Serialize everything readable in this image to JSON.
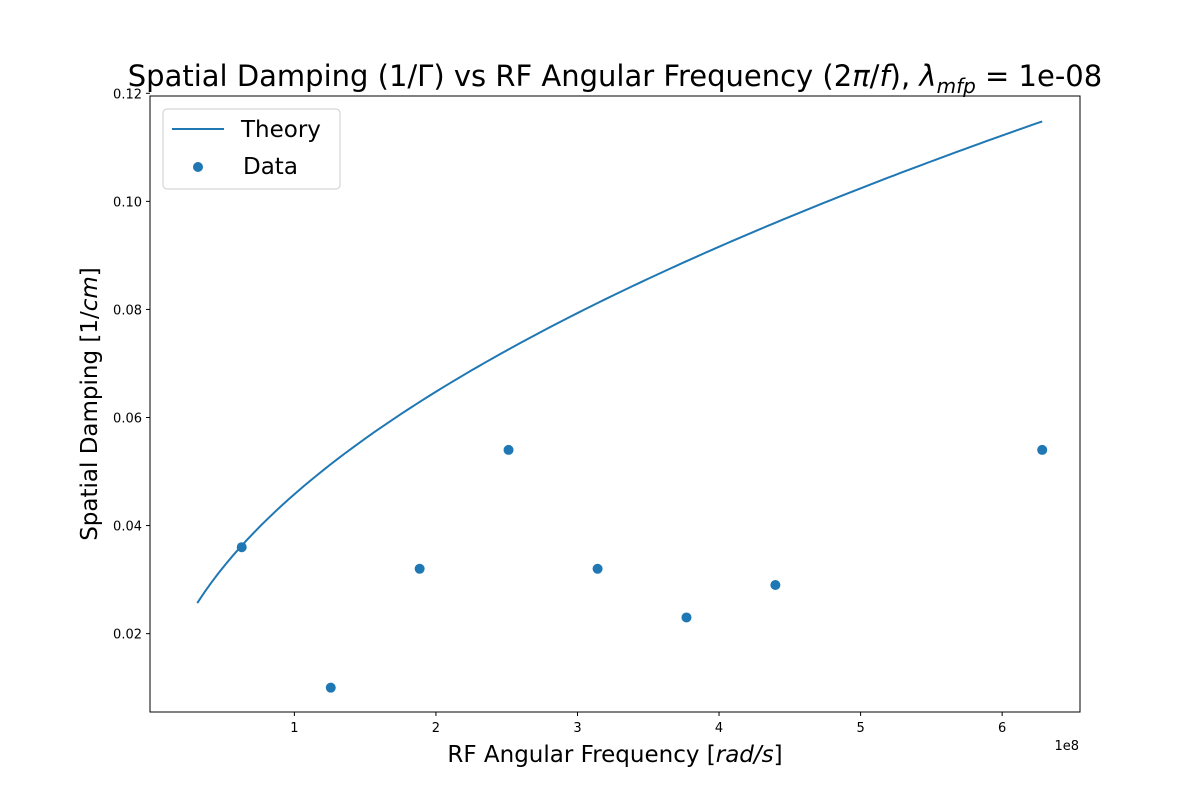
{
  "chart_data": {
    "type": "scatter",
    "title": {
      "prefix": "Spatial Damping (1/Γ) vs RF Angular Frequency (2",
      "pi": "π",
      "slash": "/",
      "f": "f",
      "suffix": "), ",
      "lambda": "λ",
      "sub": "mfp",
      "eq": " = 1e-08"
    },
    "xlabel": {
      "text": "RF Angular Frequency [",
      "math": "rad/s",
      "close": "]"
    },
    "ylabel": {
      "text": "Spatial Damping [1/",
      "math": "cm",
      "close": "]"
    },
    "x_offset_text": "1e8",
    "xlim": [
      -0.02,
      6.55
    ],
    "ylim": [
      0.0055,
      0.1195
    ],
    "xticks": [
      1,
      2,
      3,
      4,
      5,
      6
    ],
    "xtick_labels": [
      "1",
      "2",
      "3",
      "4",
      "5",
      "6"
    ],
    "yticks": [
      0.02,
      0.04,
      0.06,
      0.08,
      0.1,
      0.12
    ],
    "ytick_labels": [
      "0.02",
      "0.04",
      "0.06",
      "0.08",
      "0.10",
      "0.12"
    ],
    "x_unit_note": "x values in units of 1e8 rad/s",
    "series": [
      {
        "name": "Theory",
        "kind": "line",
        "color": "#1f77b4",
        "x_range": [
          0.314,
          6.283
        ],
        "model": "y = 0.0458 * x^0.5"
      },
      {
        "name": "Data",
        "kind": "scatter",
        "color": "#1f77b4",
        "x": [
          0.628,
          1.257,
          1.885,
          2.513,
          3.142,
          3.77,
          4.398,
          6.283
        ],
        "y": [
          0.036,
          0.01,
          0.032,
          0.054,
          0.032,
          0.023,
          0.029,
          0.054
        ]
      }
    ],
    "legend": {
      "location": "upper-left",
      "entries": [
        "Theory",
        "Data"
      ]
    },
    "grid": false
  }
}
